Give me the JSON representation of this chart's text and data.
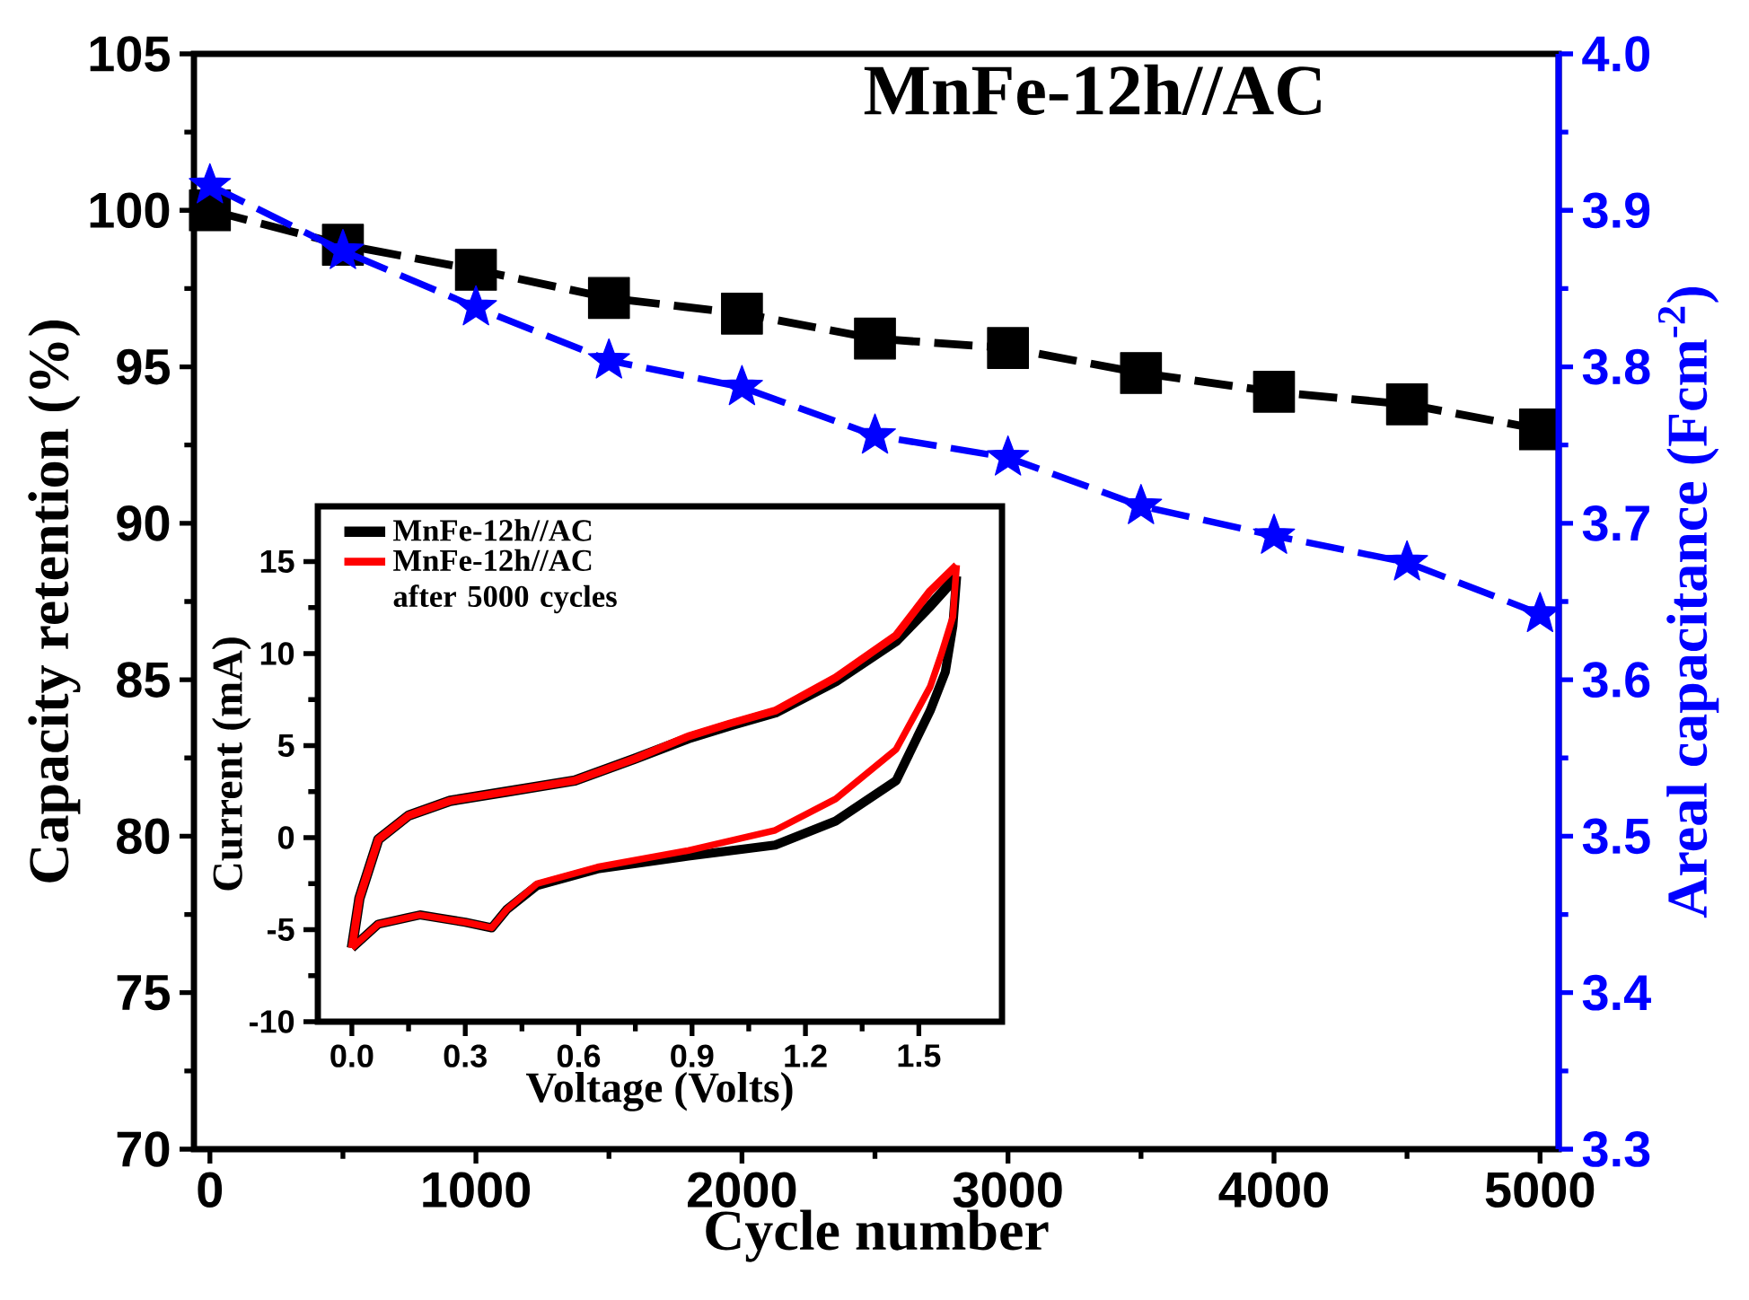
{
  "chart_data": [
    {
      "type": "line",
      "title": "MnFe-12h//AC",
      "xlabel": "Cycle number",
      "ylabel": "Capacity retention (%)",
      "y2label": "Areal capacitance (Fcm$^{-2}$)",
      "x": [
        0,
        500,
        1000,
        1500,
        2000,
        2500,
        3000,
        3500,
        4000,
        4500,
        5000
      ],
      "xlim": [
        -60,
        5070
      ],
      "xticks": [
        0,
        1000,
        2000,
        3000,
        4000,
        5000
      ],
      "ylim": [
        70,
        105
      ],
      "yticks": [
        70,
        75,
        80,
        85,
        90,
        95,
        100,
        105
      ],
      "y2lim": [
        3.3,
        4.0
      ],
      "y2ticks": [
        3.3,
        3.4,
        3.5,
        3.6,
        3.7,
        3.8,
        3.9,
        {
          "value": 4.0,
          "label": "4.0"
        }
      ],
      "line_style": "dashed",
      "series": [
        {
          "color": "#000000",
          "marker": "square",
          "values": [
            100,
            98.9,
            98.1,
            97.2,
            96.7,
            95.9,
            95.6,
            94.8,
            94.2,
            93.8,
            93.0
          ]
        },
        {
          "color": "#0000ff",
          "marker": "star",
          "axis": "y2",
          "values": [
            3.916,
            3.874,
            3.838,
            3.804,
            3.787,
            3.756,
            3.742,
            3.711,
            3.692,
            3.675,
            3.642
          ]
        }
      ]
    },
    {
      "type": "line",
      "xlabel": "Voltage (Volts)",
      "ylabel": "Current (mA)",
      "xlim": [
        -0.09,
        1.72
      ],
      "ylim": [
        -10,
        18
      ],
      "xticks": [
        {
          "value": 0,
          "label": "0.0"
        },
        0.3,
        0.6,
        0.9,
        1.2,
        1.5
      ],
      "yticks": [
        -10,
        -5,
        0,
        5,
        10,
        15
      ],
      "legend": "top left",
      "line_style": "solid",
      "series": [
        {
          "name": "MnFe-12h//AC",
          "color": "#000000",
          "x": [
            0,
            0.02,
            0.07,
            0.15,
            0.26,
            0.41,
            0.59,
            0.75,
            0.89,
            1.0,
            1.12,
            1.28,
            1.44,
            1.53,
            1.6
          ],
          "values": [
            -6,
            -3.3,
            -0.1,
            1.2,
            2.0,
            2.5,
            3.1,
            4.3,
            5.4,
            6.1,
            6.8,
            8.5,
            10.7,
            12.6,
            14.2
          ]
        },
        {
          "color": "#000000",
          "x": [
            0,
            0.07,
            0.18,
            0.3,
            0.37,
            0.41,
            0.49,
            0.65,
            0.89,
            1.12,
            1.28,
            1.44,
            1.53,
            1.57,
            1.59,
            1.6
          ],
          "values": [
            -6,
            -4.7,
            -4.2,
            -4.6,
            -4.9,
            -3.9,
            -2.6,
            -1.7,
            -1.0,
            -0.4,
            0.9,
            3.1,
            6.9,
            9.0,
            11.5,
            14.2
          ]
        },
        {
          "name": "MnFe-12h//AC after 5000 cycles",
          "color": "#ff0000",
          "x": [
            0,
            0.02,
            0.07,
            0.15,
            0.26,
            0.41,
            0.59,
            0.75,
            0.89,
            1.0,
            1.12,
            1.28,
            1.44,
            1.53,
            1.6
          ],
          "values": [
            -6,
            -3.3,
            -0.1,
            1.2,
            2.0,
            2.5,
            3.1,
            4.3,
            5.5,
            6.2,
            6.9,
            8.7,
            11.0,
            13.4,
            14.8
          ]
        },
        {
          "color": "#ff0000",
          "x": [
            0,
            0.07,
            0.18,
            0.3,
            0.37,
            0.41,
            0.49,
            0.65,
            0.89,
            1.12,
            1.28,
            1.44,
            1.53,
            1.56,
            1.59,
            1.6
          ],
          "values": [
            -6,
            -4.7,
            -4.2,
            -4.6,
            -4.9,
            -3.9,
            -2.5,
            -1.6,
            -0.7,
            0.4,
            2.1,
            4.8,
            8.2,
            10.0,
            12.0,
            14.8
          ]
        }
      ]
    }
  ]
}
